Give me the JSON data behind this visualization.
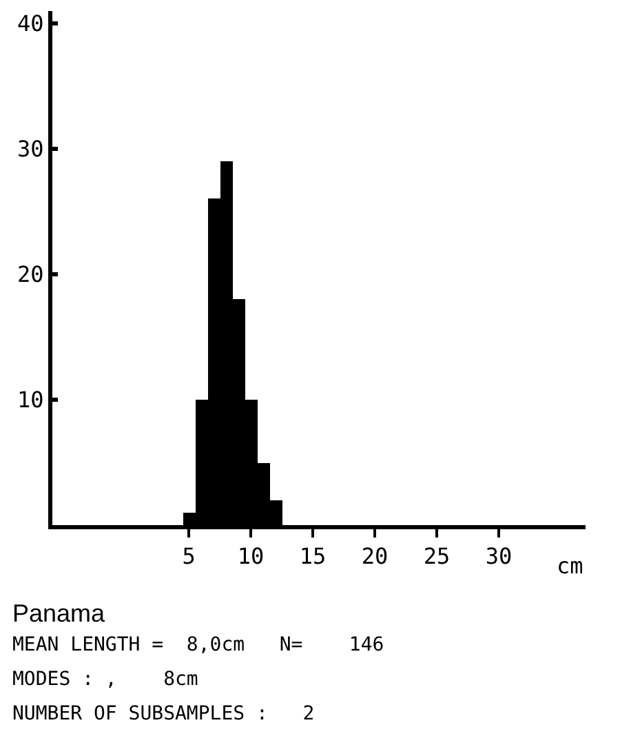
{
  "chart_data": {
    "type": "histogram",
    "xlabel": "cm",
    "bins": [
      4.5,
      5.5,
      6.5,
      7.5,
      8.5,
      9.5,
      10.5,
      11.5,
      12.5
    ],
    "values": [
      1,
      10,
      26,
      29,
      18,
      10,
      5,
      2
    ],
    "color": "#000000",
    "xlim": [
      -6,
      37
    ],
    "xticks": [
      5,
      10,
      15,
      20,
      25,
      30
    ],
    "ylim": [
      0,
      41
    ],
    "yticks": [
      10,
      20,
      30,
      40
    ],
    "grid": false,
    "annotations": [
      "Panama",
      "MEAN LENGTH =  8,0cm   N=    146",
      "MODES : ,    8cm",
      "NUMBER OF SUBSAMPLES :   2"
    ]
  }
}
